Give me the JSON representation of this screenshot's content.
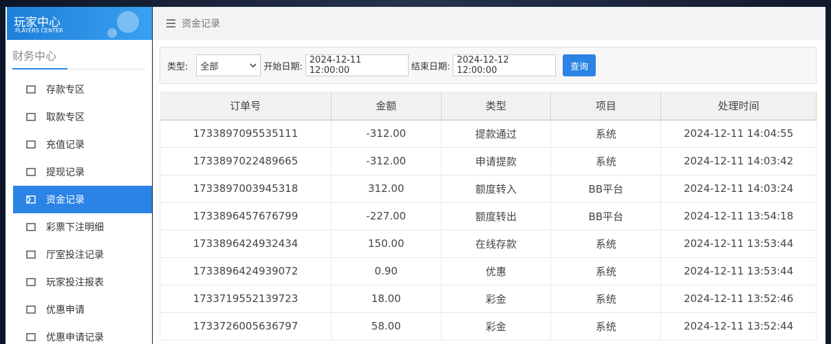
{
  "sidebar": {
    "logo": {
      "title": "玩家中心",
      "subtitle": "PLAYERS CENTER"
    },
    "section": "财务中心",
    "menu": [
      "存款专区",
      "取款专区",
      "充值记录",
      "提现记录",
      "资金记录",
      "彩票下注明细",
      "厅室投注记录",
      "玩家投注报表",
      "优惠申请",
      "优惠申请记录"
    ],
    "active": 4
  },
  "breadcrumb": "资金记录",
  "filter": {
    "type_label": "类型:",
    "type_value": "全部",
    "start_label": "开始日期:",
    "start_value": "2024-12-11 12:00:00",
    "end_label": "结束日期:",
    "end_value": "2024-12-12 12:00:00",
    "button": "查询"
  },
  "table": {
    "headers": [
      "订单号",
      "金额",
      "类型",
      "项目",
      "处理时间"
    ],
    "rows": [
      [
        "1733897095535111",
        "-312.00",
        "提款通过",
        "系统",
        "2024-12-11 14:04:55"
      ],
      [
        "1733897022489665",
        "-312.00",
        "申请提款",
        "系统",
        "2024-12-11 14:03:42"
      ],
      [
        "1733897003945318",
        "312.00",
        "额度转入",
        "BB平台",
        "2024-12-11 14:03:24"
      ],
      [
        "1733896457676799",
        "-227.00",
        "额度转出",
        "BB平台",
        "2024-12-11 13:54:18"
      ],
      [
        "1733896424932434",
        "150.00",
        "在线存款",
        "系统",
        "2024-12-11 13:53:44"
      ],
      [
        "1733896424939072",
        "0.90",
        "优惠",
        "系统",
        "2024-12-11 13:53:44"
      ],
      [
        "1733719552139723",
        "18.00",
        "彩金",
        "系统",
        "2024-12-11 13:52:46"
      ],
      [
        "1733726005636797",
        "58.00",
        "彩金",
        "系统",
        "2024-12-11 13:52:44"
      ]
    ]
  }
}
